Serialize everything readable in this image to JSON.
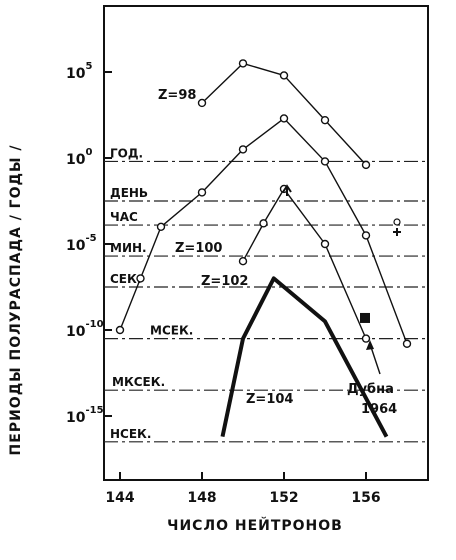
{
  "chart_data": {
    "type": "line",
    "xlabel": "ЧИСЛО НЕЙТРОНОВ",
    "ylabel": "ПЕРИОДЫ ПОЛУРАСПАДА / ГОДЫ /",
    "xlim": [
      142,
      160
    ],
    "ylim": [
      -17,
      8
    ],
    "y_scale": "log10",
    "x_ticks": [
      {
        "value": 144,
        "label": "144"
      },
      {
        "value": 148,
        "label": "148"
      },
      {
        "value": 152,
        "label": "152"
      },
      {
        "value": 156,
        "label": "156"
      }
    ],
    "y_ticks": [
      {
        "exp": 5,
        "base": "10",
        "sup": "5"
      },
      {
        "exp": 0,
        "base": "10",
        "sup": "0"
      },
      {
        "exp": -5,
        "base": "10",
        "sup": "-5"
      },
      {
        "exp": -10,
        "base": "10",
        "sup": "-10"
      },
      {
        "exp": -15,
        "base": "10",
        "sup": "-15"
      }
    ],
    "reference_lines": [
      {
        "label": "ГОД.",
        "log_value": -0.2
      },
      {
        "label": "ДЕНЬ",
        "log_value": -2.5
      },
      {
        "label": "ЧАС",
        "log_value": -3.9
      },
      {
        "label": "МИН.",
        "log_value": -5.7
      },
      {
        "label": "СЕК.",
        "log_value": -7.5
      },
      {
        "label": "МСЕК.",
        "log_value": -10.5
      },
      {
        "label": "МКСЕК.",
        "log_value": -13.5
      },
      {
        "label": "НСЕК.",
        "log_value": -16.5
      }
    ],
    "series": [
      {
        "name": "Z=98",
        "marker": "circle",
        "points": [
          [
            148,
            3.2
          ],
          [
            150,
            5.5
          ],
          [
            152,
            4.8
          ],
          [
            154,
            2.2
          ],
          [
            156,
            -0.4
          ]
        ]
      },
      {
        "name": "Z=100",
        "marker": "circle",
        "points": [
          [
            144,
            -10
          ],
          [
            145,
            -7
          ],
          [
            146,
            -4
          ],
          [
            148,
            -2
          ],
          [
            150,
            0.5
          ],
          [
            152,
            2.3
          ],
          [
            154,
            -0.2
          ],
          [
            156,
            -4.5
          ],
          [
            158,
            -10.8
          ]
        ]
      },
      {
        "name": "Z=102",
        "marker": "circle",
        "points": [
          [
            150,
            -6
          ],
          [
            151,
            -3.8
          ],
          [
            152,
            -1.8
          ],
          [
            154,
            -5
          ],
          [
            156,
            -10.5
          ]
        ]
      },
      {
        "name": "Z=104",
        "marker": "none",
        "points": [
          [
            149,
            -16.2
          ],
          [
            150,
            -10.5
          ],
          [
            151.5,
            -7
          ],
          [
            154,
            -9.5
          ],
          [
            157,
            -16.2
          ]
        ]
      }
    ],
    "annotations": [
      {
        "text": "Дубна",
        "text2": "1964",
        "point": [
          156,
          -9.3
        ],
        "marker": "square"
      }
    ]
  }
}
